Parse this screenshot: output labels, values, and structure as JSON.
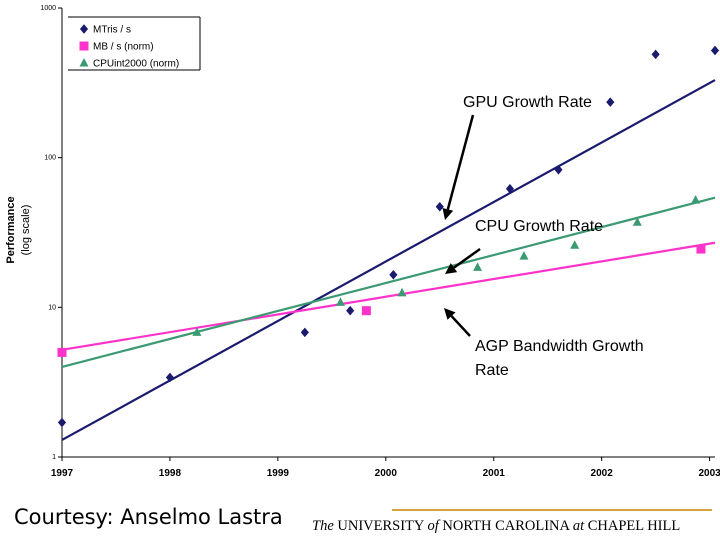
{
  "chart_data": {
    "type": "scatter",
    "ylabel": "Performance (log scale)",
    "ylabel_lines": [
      "Performance",
      "(log scale)"
    ],
    "y_scale": "log",
    "ylim": [
      1,
      1000
    ],
    "yticks": [
      "1",
      "10",
      "100",
      "1000"
    ],
    "xlim": [
      1997,
      2003.05
    ],
    "xticks": [
      "1997",
      "1998",
      "1999",
      "2000",
      "2001",
      "2002",
      "2003"
    ],
    "legend_position": "top-left",
    "grid": false,
    "series": [
      {
        "name": "MTris / s",
        "color": "#1a1a6e",
        "marker": "diamond",
        "points": [
          [
            1997.0,
            1.7
          ],
          [
            1998.0,
            3.4
          ],
          [
            1999.25,
            6.8
          ],
          [
            1999.67,
            9.5
          ],
          [
            2000.07,
            16.5
          ],
          [
            2000.5,
            47
          ],
          [
            2001.15,
            62
          ],
          [
            2001.6,
            83
          ],
          [
            2002.08,
            235
          ],
          [
            2002.5,
            490
          ],
          [
            2003.05,
            520
          ]
        ],
        "trend": [
          [
            1997.0,
            1.3
          ],
          [
            2003.05,
            330
          ]
        ]
      },
      {
        "name": "MB / s (norm)",
        "color": "#ff33cc",
        "marker": "square",
        "points": [
          [
            1997.0,
            5.0
          ],
          [
            1999.82,
            9.5
          ],
          [
            2002.92,
            24.5
          ]
        ],
        "trend": [
          [
            1997.0,
            5.2
          ],
          [
            2003.05,
            27
          ]
        ]
      },
      {
        "name": "CPUint2000 (norm)",
        "color": "#3b9a72",
        "marker": "triangle",
        "points": [
          [
            1998.25,
            6.8
          ],
          [
            1999.58,
            10.8
          ],
          [
            2000.15,
            12.5
          ],
          [
            2000.85,
            18.5
          ],
          [
            2001.28,
            22
          ],
          [
            2001.75,
            26
          ],
          [
            2002.33,
            37
          ],
          [
            2002.87,
            52
          ]
        ],
        "trend": [
          [
            1997.0,
            4.0
          ],
          [
            2003.05,
            54
          ]
        ]
      }
    ],
    "annotations": [
      {
        "text": "GPU Growth Rate",
        "points_to_series": "MTris / s"
      },
      {
        "text": "CPU Growth Rate",
        "points_to_series": "CPUint2000 (norm)"
      },
      {
        "text": "AGP Bandwidth Growth Rate",
        "lines": [
          "AGP Bandwidth Growth",
          "Rate"
        ],
        "points_to_series": "MB / s (norm)"
      }
    ]
  },
  "footer": {
    "courtesy": "Courtesy: Anselmo Lastra",
    "univ_the": "The",
    "univ_a": " UNIVERSITY ",
    "univ_of": "of",
    "univ_b": " NORTH CAROLINA ",
    "univ_at": "at",
    "univ_c": " CHAPEL HILL"
  }
}
